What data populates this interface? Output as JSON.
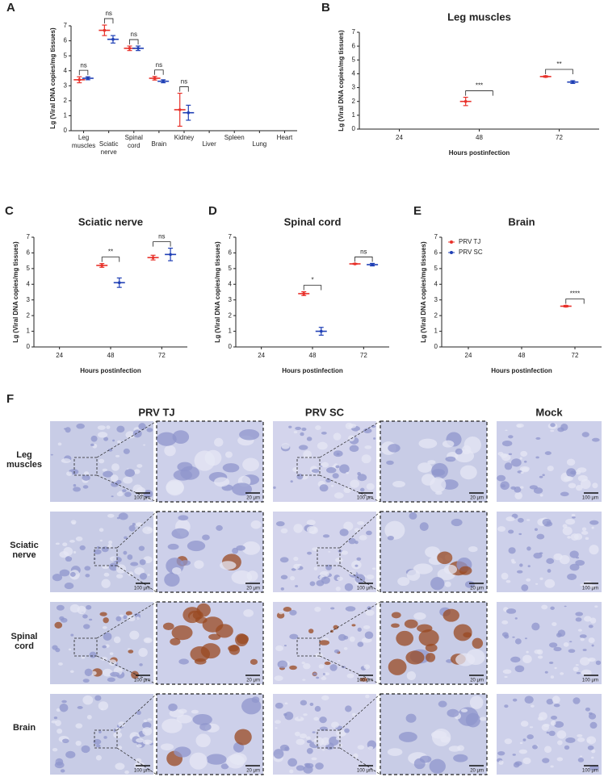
{
  "chart_data": [
    {
      "type": "dot",
      "label": "A",
      "ylabel": "Lg (Viral DNA copies/mg tissues)",
      "categories": [
        "Leg muscles",
        "Sciatic nerve",
        "Spinal cord",
        "Brain",
        "Kidney",
        "Liver",
        "Spleen",
        "Lung",
        "Heart"
      ],
      "series": [
        {
          "color": "#e8312a",
          "values": [
            3.4,
            6.7,
            5.5,
            3.5,
            1.4,
            null,
            null,
            null,
            null
          ],
          "errors": [
            0.2,
            0.35,
            0.15,
            0.12,
            1.1,
            null,
            null,
            null,
            null
          ]
        },
        {
          "color": "#1f3fb5",
          "values": [
            3.5,
            6.1,
            5.5,
            3.3,
            1.2,
            null,
            null,
            null,
            null
          ],
          "errors": [
            0.1,
            0.25,
            0.15,
            0.1,
            0.5,
            null,
            null,
            null,
            null
          ]
        }
      ],
      "ylim": [
        0,
        7
      ],
      "yticks": [
        0,
        1,
        2,
        3,
        4,
        5,
        6,
        7
      ],
      "annotations": [
        {
          "text": "ns",
          "category": "Leg muscles"
        },
        {
          "text": "ns",
          "category": "Sciatic nerve"
        },
        {
          "text": "ns",
          "category": "Spinal cord"
        },
        {
          "text": "ns",
          "category": "Brain"
        },
        {
          "text": "ns",
          "category": "Kidney"
        }
      ]
    },
    {
      "type": "dot",
      "label": "B",
      "title": "Leg muscles",
      "ylabel": "Lg (Viral DNA copies/mg tissues)",
      "xlabel": "Hours postinfection",
      "categories": [
        "24",
        "48",
        "72"
      ],
      "series": [
        {
          "color": "#e8312a",
          "values": [
            null,
            2.0,
            3.8
          ],
          "errors": [
            null,
            0.3,
            0.05
          ]
        },
        {
          "color": "#1f3fb5",
          "values": [
            null,
            null,
            3.4
          ],
          "errors": [
            null,
            null,
            0.1
          ]
        }
      ],
      "ylim": [
        0,
        7
      ],
      "yticks": [
        0,
        1,
        2,
        3,
        4,
        5,
        6,
        7
      ],
      "annotations": [
        {
          "text": "***",
          "category": "48"
        },
        {
          "text": "**",
          "category": "72"
        }
      ]
    },
    {
      "type": "dot",
      "label": "C",
      "title": "Sciatic nerve",
      "ylabel": "Lg (Viral DNA copies/mg tissues)",
      "xlabel": "Hours postinfection",
      "categories": [
        "24",
        "48",
        "72"
      ],
      "series": [
        {
          "color": "#e8312a",
          "values": [
            null,
            5.2,
            5.7
          ],
          "errors": [
            null,
            0.12,
            0.15
          ]
        },
        {
          "color": "#1f3fb5",
          "values": [
            null,
            4.1,
            5.9
          ],
          "errors": [
            null,
            0.3,
            0.4
          ]
        }
      ],
      "ylim": [
        0,
        7
      ],
      "yticks": [
        0,
        1,
        2,
        3,
        4,
        5,
        6,
        7
      ],
      "annotations": [
        {
          "text": "**",
          "category": "48"
        },
        {
          "text": "ns",
          "category": "72"
        }
      ]
    },
    {
      "type": "dot",
      "label": "D",
      "title": "Spinal cord",
      "ylabel": "Lg (Viral DNA copies/mg tissues)",
      "xlabel": "Hours postinfection",
      "categories": [
        "24",
        "48",
        "72"
      ],
      "series": [
        {
          "color": "#e8312a",
          "values": [
            null,
            3.4,
            5.3
          ],
          "errors": [
            null,
            0.12,
            0.03
          ]
        },
        {
          "color": "#1f3fb5",
          "values": [
            null,
            1.0,
            5.25
          ],
          "errors": [
            null,
            0.25,
            0.08
          ]
        }
      ],
      "ylim": [
        0,
        7
      ],
      "yticks": [
        0,
        1,
        2,
        3,
        4,
        5,
        6,
        7
      ],
      "annotations": [
        {
          "text": "*",
          "category": "48"
        },
        {
          "text": "ns",
          "category": "72"
        }
      ]
    },
    {
      "type": "dot",
      "label": "E",
      "title": "Brain",
      "ylabel": "Lg (Viral DNA copies/mg tissues)",
      "xlabel": "Hours postinfection",
      "categories": [
        "24",
        "48",
        "72"
      ],
      "legend": "top-left",
      "series": [
        {
          "name": "PRV TJ",
          "color": "#e8312a",
          "values": [
            null,
            null,
            2.6
          ],
          "errors": [
            null,
            null,
            0.05
          ]
        },
        {
          "name": "PRV SC",
          "color": "#1f3fb5",
          "values": [
            null,
            null,
            null
          ],
          "errors": [
            null,
            null,
            null
          ]
        }
      ],
      "ylim": [
        0,
        7
      ],
      "yticks": [
        0,
        1,
        2,
        3,
        4,
        5,
        6,
        7
      ],
      "annotations": [
        {
          "text": "****",
          "category": "72"
        }
      ]
    }
  ],
  "figure_f": {
    "label": "F",
    "columns": [
      "PRV TJ",
      "PRV SC",
      "Mock"
    ],
    "rows": [
      "Leg muscles",
      "Sciatic nerve",
      "Spinal cord",
      "Brain"
    ],
    "scale_bars": [
      "100 μm",
      "20 μm"
    ]
  }
}
